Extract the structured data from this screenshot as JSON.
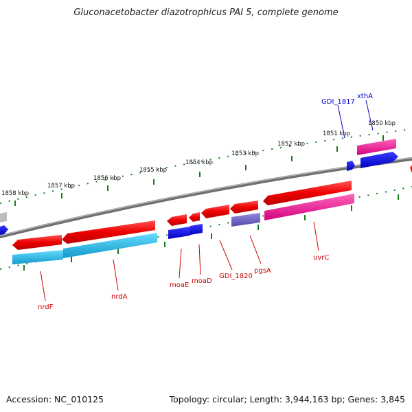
{
  "title": "Gluconacetobacter diazotrophicus PAI 5, complete genome",
  "footer": {
    "accession": "Accession: NC_010125",
    "topology": "Topology: circular; Length: 3,944,163 bp; Genes: 3,845"
  },
  "ruler_labels": [
    {
      "id": "1858",
      "text": "1858 kbp"
    },
    {
      "id": "1857",
      "text": "1857 kbp"
    },
    {
      "id": "1856",
      "text": "1856 kbp"
    },
    {
      "id": "1855",
      "text": "1855 kbp"
    },
    {
      "id": "1854",
      "text": "1854 kbp"
    },
    {
      "id": "1853",
      "text": "1853 kbp"
    },
    {
      "id": "1852",
      "text": "1852 kbp"
    },
    {
      "id": "1851",
      "text": "1851 kbp"
    },
    {
      "id": "1850",
      "text": "1850 kbp"
    }
  ],
  "gene_labels": [
    {
      "id": "nrdF",
      "text": "nrdF",
      "color": "#cc0000"
    },
    {
      "id": "nrdA",
      "text": "nrdA",
      "color": "#cc0000"
    },
    {
      "id": "moaE",
      "text": "moaE",
      "color": "#cc0000"
    },
    {
      "id": "moaD",
      "text": "moaD",
      "color": "#cc0000"
    },
    {
      "id": "GDI_1820",
      "text": "GDI_1820",
      "color": "#cc0000"
    },
    {
      "id": "pgsA",
      "text": "pgsA",
      "color": "#cc0000"
    },
    {
      "id": "uvrC",
      "text": "uvrC",
      "color": "#cc0000"
    },
    {
      "id": "GDI_1817",
      "text": "GDI_1817",
      "color": "#0000cc"
    },
    {
      "id": "xthA",
      "text": "xthA",
      "color": "#0000cc"
    }
  ],
  "colors": {
    "backbone": "#7a7a7a",
    "ruler_ticks": "#1a7a1a",
    "cds_red": "#ee1111",
    "cds_blue": "#1010dd",
    "cds_cyan": "#22bbee",
    "cds_pink": "#ee2299",
    "cds_purple": "#6a5acd",
    "cds_grey": "#bdbdbd"
  }
}
